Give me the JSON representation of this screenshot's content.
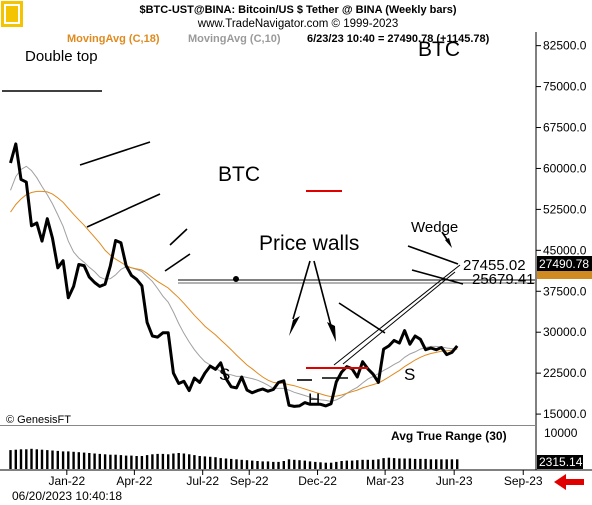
{
  "header": {
    "line1": "$BTC-UST@BINA:  Bitcoin/US $ Tether @ BINA  (Weekly bars)",
    "line2": "www.TradeNavigator.com © 1999-2023",
    "ma1_label": "MovingAvg (C,18)",
    "ma2_label": "MovingAvg (C,10)",
    "last_bar": "6/23/23 10:40 = 27490.78 (+1145.78)"
  },
  "colors": {
    "price": "#000000",
    "ma18": "#e08a1e",
    "ma10": "#a0a0a0",
    "price_wall": "#e00000",
    "atr_bars": "#000000",
    "arrow": "#e00000"
  },
  "footer": {
    "copyright": "© GenesisFT",
    "timestamp": "06/20/2023 10:40:18",
    "atr_label": "Avg True Range (30)",
    "atr_value": "2315.14",
    "atr_scale": "10000"
  },
  "chart_data": {
    "type": "line",
    "title": "$BTC-UST@BINA:  Bitcoin/US $ Tether @ BINA  (Weekly bars)",
    "ylim": [
      13000,
      85000
    ],
    "ytick_values": [
      15000,
      22500,
      30000,
      37500,
      45000,
      52500,
      60000,
      67500,
      75000,
      82500
    ],
    "ytick_labels": [
      "15000.0",
      "22500.0",
      "30000.0",
      "37500.0",
      "45000.0",
      "52500.0",
      "60000.0",
      "67500.0",
      "75000.0",
      "82500.0"
    ],
    "xtick_labels": [
      "Jan-22",
      "Apr-22",
      "Jul-22",
      "Sep-22",
      "Dec-22",
      "Mar-23",
      "Jun-23",
      "Sep-23"
    ],
    "x": [
      "2021-11-01",
      "2021-11-08",
      "2021-11-15",
      "2021-11-22",
      "2021-11-29",
      "2021-12-06",
      "2021-12-13",
      "2021-12-20",
      "2021-12-27",
      "2022-01-03",
      "2022-01-10",
      "2022-01-17",
      "2022-01-24",
      "2022-01-31",
      "2022-02-07",
      "2022-02-14",
      "2022-02-21",
      "2022-02-28",
      "2022-03-07",
      "2022-03-14",
      "2022-03-21",
      "2022-03-28",
      "2022-04-04",
      "2022-04-11",
      "2022-04-18",
      "2022-04-25",
      "2022-05-02",
      "2022-05-09",
      "2022-05-16",
      "2022-05-23",
      "2022-05-30",
      "2022-06-06",
      "2022-06-13",
      "2022-06-20",
      "2022-06-27",
      "2022-07-04",
      "2022-07-11",
      "2022-07-18",
      "2022-07-25",
      "2022-08-01",
      "2022-08-08",
      "2022-08-15",
      "2022-08-22",
      "2022-08-29",
      "2022-09-05",
      "2022-09-12",
      "2022-09-19",
      "2022-09-26",
      "2022-10-03",
      "2022-10-10",
      "2022-10-17",
      "2022-10-24",
      "2022-10-31",
      "2022-11-07",
      "2022-11-14",
      "2022-11-21",
      "2022-11-28",
      "2022-12-05",
      "2022-12-12",
      "2022-12-19",
      "2022-12-26",
      "2023-01-02",
      "2023-01-09",
      "2023-01-16",
      "2023-01-23",
      "2023-01-30",
      "2023-02-06",
      "2023-02-13",
      "2023-02-20",
      "2023-02-27",
      "2023-03-06",
      "2023-03-13",
      "2023-03-20",
      "2023-03-27",
      "2023-04-03",
      "2023-04-10",
      "2023-04-17",
      "2023-04-24",
      "2023-05-01",
      "2023-05-08",
      "2023-05-15",
      "2023-05-22",
      "2023-05-29",
      "2023-06-05",
      "2023-06-12",
      "2023-06-19"
    ],
    "series": [
      {
        "name": "$BTC-UST@BINA",
        "values": [
          61000,
          64500,
          58000,
          57500,
          49500,
          50000,
          46700,
          50800,
          47200,
          41800,
          43100,
          36300,
          38400,
          42400,
          42200,
          40100,
          39100,
          38400,
          38800,
          42200,
          46800,
          46400,
          42200,
          40400,
          39700,
          38500,
          31800,
          29300,
          29100,
          29900,
          29900,
          22500,
          20600,
          21000,
          19300,
          21600,
          20800,
          22500,
          23800,
          23200,
          24400,
          21500,
          20000,
          19800,
          21800,
          19400,
          18900,
          19300,
          19600,
          19200,
          19500,
          20800,
          21100,
          16600,
          16400,
          16500,
          17100,
          16800,
          16800,
          16800,
          16500,
          16900,
          20900,
          22700,
          23700,
          23300,
          21800,
          24600,
          23300,
          22300,
          20800,
          26900,
          27500,
          28500,
          28000,
          30300,
          27800,
          29300,
          28700,
          26800,
          27100,
          26800,
          27200,
          25900,
          26300,
          27490.78
        ]
      },
      {
        "name": "MovingAvg (C,18)",
        "values": [
          52000,
          53400,
          54400,
          55200,
          55600,
          55800,
          55800,
          55700,
          55300,
          54600,
          53800,
          52700,
          51600,
          50600,
          49600,
          48500,
          47400,
          46300,
          45000,
          44100,
          43400,
          42800,
          42200,
          41800,
          41600,
          41400,
          40800,
          40000,
          39300,
          38700,
          38100,
          37200,
          36300,
          35300,
          34200,
          33100,
          32100,
          31100,
          30300,
          29500,
          28600,
          27700,
          26800,
          25800,
          24900,
          24000,
          23300,
          22500,
          21800,
          21200,
          20800,
          20700,
          20600,
          20400,
          20200,
          19900,
          19600,
          19300,
          19000,
          18700,
          18400,
          18200,
          18300,
          18500,
          18800,
          19100,
          19400,
          19800,
          20100,
          20400,
          20700,
          21200,
          21800,
          22400,
          23000,
          23700,
          24300,
          24900,
          25400,
          25800,
          26100,
          26300,
          26500,
          26600,
          26700,
          26900
        ]
      },
      {
        "name": "MovingAvg (C,10)",
        "values": [
          56000,
          58500,
          59800,
          60400,
          59600,
          58300,
          56700,
          55200,
          53500,
          51500,
          49400,
          46700,
          44700,
          43600,
          42800,
          41900,
          41100,
          40100,
          39700,
          39800,
          40500,
          41500,
          42000,
          41800,
          41500,
          41100,
          40200,
          39300,
          38000,
          36600,
          35500,
          33700,
          31600,
          29800,
          28200,
          26800,
          25600,
          24600,
          24000,
          23400,
          22800,
          22400,
          22200,
          21900,
          21900,
          21700,
          21500,
          21200,
          20800,
          20300,
          19700,
          19700,
          19700,
          19400,
          19000,
          18700,
          18400,
          18100,
          17800,
          17600,
          17500,
          17300,
          17600,
          18100,
          18800,
          19400,
          19900,
          20700,
          21400,
          21900,
          22400,
          23000,
          23500,
          24100,
          24600,
          25400,
          26000,
          26400,
          26900,
          27200,
          27400,
          27400,
          27300,
          27100,
          27000,
          26900
        ]
      }
    ],
    "atr_values": [
      4500,
      4600,
      4700,
      4700,
      4800,
      4700,
      4600,
      4500,
      4400,
      4300,
      4200,
      4200,
      4100,
      4000,
      3900,
      3800,
      3700,
      3600,
      3500,
      3400,
      3400,
      3300,
      3200,
      3200,
      3100,
      3100,
      3300,
      3500,
      3600,
      3600,
      3500,
      3700,
      3800,
      3700,
      3500,
      3300,
      3100,
      3000,
      2900,
      2800,
      2600,
      2500,
      2400,
      2300,
      2200,
      2100,
      2000,
      1900,
      1800,
      1800,
      1700,
      1700,
      1900,
      2300,
      2200,
      2100,
      2000,
      1800,
      1700,
      1600,
      1500,
      1500,
      1700,
      1900,
      2000,
      2000,
      2100,
      2200,
      2200,
      2200,
      2300,
      2600,
      2700,
      2600,
      2500,
      2500,
      2500,
      2400,
      2400,
      2400,
      2300,
      2300,
      2300,
      2300,
      2300,
      2315.14
    ],
    "atr_ylim": [
      0,
      10000
    ],
    "ma_highlight": [
      "y",
      27455.02
    ],
    "annotations": {
      "double_top": "Double top",
      "btc_center": "BTC",
      "btc_corner": "BTC",
      "price_walls": "Price walls",
      "wedge": "Wedge",
      "s_left": "S",
      "s_right": "S",
      "h": "H",
      "level1": "27455.02",
      "level2": "25679.41",
      "last_price": "27490.78",
      "price_wall_level": 40500,
      "price_wall_lower_level": 16800,
      "neckline_level": 26300
    }
  }
}
